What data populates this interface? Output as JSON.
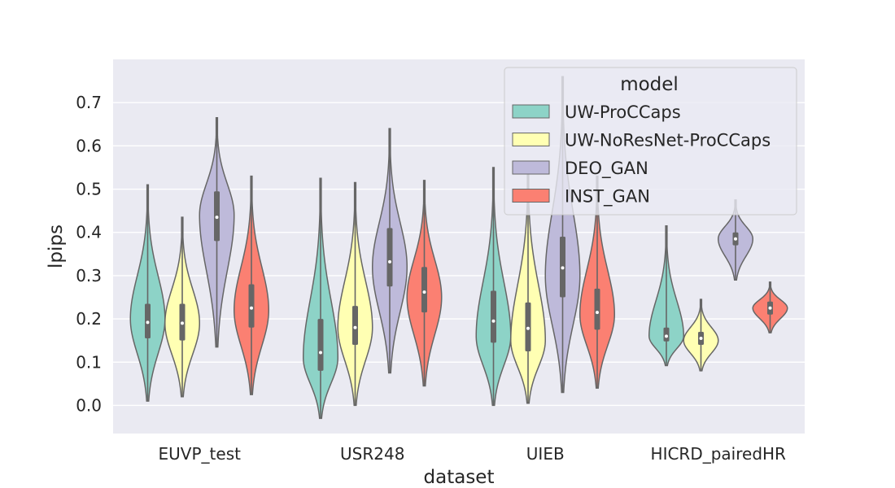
{
  "chart_data": {
    "type": "violin",
    "xlabel": "dataset",
    "ylabel": "lpips",
    "categories": [
      "EUVP_test",
      "USR248",
      "UIEB",
      "HICRD_pairedHR"
    ],
    "ylim": [
      -0.065,
      0.8
    ],
    "yticks": [
      "0.0",
      "0.1",
      "0.2",
      "0.3",
      "0.4",
      "0.5",
      "0.6",
      "0.7"
    ],
    "grid": true,
    "legend": {
      "title": "model",
      "placement": "top-right"
    },
    "series": [
      {
        "name": "UW-ProCCaps",
        "color": "#8dd3c7",
        "stats": [
          {
            "min": 0.01,
            "q1": 0.155,
            "median": 0.192,
            "q3": 0.235,
            "max": 0.51,
            "mode": 0.2
          },
          {
            "min": -0.03,
            "q1": 0.08,
            "median": 0.122,
            "q3": 0.2,
            "max": 0.525,
            "mode": 0.11
          },
          {
            "min": 0.0,
            "q1": 0.145,
            "median": 0.195,
            "q3": 0.265,
            "max": 0.55,
            "mode": 0.16
          },
          {
            "min": 0.092,
            "q1": 0.148,
            "median": 0.16,
            "q3": 0.18,
            "max": 0.415,
            "mode": 0.16
          }
        ]
      },
      {
        "name": "UW-NoResNet-ProCCaps",
        "color": "#ffffb3",
        "stats": [
          {
            "min": 0.02,
            "q1": 0.15,
            "median": 0.19,
            "q3": 0.235,
            "max": 0.435,
            "mode": 0.19
          },
          {
            "min": 0.0,
            "q1": 0.14,
            "median": 0.18,
            "q3": 0.23,
            "max": 0.515,
            "mode": 0.18
          },
          {
            "min": 0.005,
            "q1": 0.125,
            "median": 0.178,
            "q3": 0.238,
            "max": 0.55,
            "mode": 0.15
          },
          {
            "min": 0.08,
            "q1": 0.14,
            "median": 0.155,
            "q3": 0.17,
            "max": 0.245,
            "mode": 0.15
          }
        ]
      },
      {
        "name": "DEO_GAN",
        "color": "#bebada",
        "stats": [
          {
            "min": 0.135,
            "q1": 0.38,
            "median": 0.435,
            "q3": 0.495,
            "max": 0.665,
            "mode": 0.44
          },
          {
            "min": 0.075,
            "q1": 0.275,
            "median": 0.332,
            "q3": 0.41,
            "max": 0.64,
            "mode": 0.32
          },
          {
            "min": 0.03,
            "q1": 0.25,
            "median": 0.318,
            "q3": 0.39,
            "max": 0.76,
            "mode": 0.3
          },
          {
            "min": 0.29,
            "q1": 0.37,
            "median": 0.385,
            "q3": 0.4,
            "max": 0.475,
            "mode": 0.385
          }
        ]
      },
      {
        "name": "INST_GAN",
        "color": "#fb8072",
        "stats": [
          {
            "min": 0.025,
            "q1": 0.18,
            "median": 0.225,
            "q3": 0.28,
            "max": 0.53,
            "mode": 0.22
          },
          {
            "min": 0.045,
            "q1": 0.215,
            "median": 0.262,
            "q3": 0.32,
            "max": 0.52,
            "mode": 0.25
          },
          {
            "min": 0.04,
            "q1": 0.175,
            "median": 0.215,
            "q3": 0.27,
            "max": 0.53,
            "mode": 0.21
          },
          {
            "min": 0.168,
            "q1": 0.21,
            "median": 0.225,
            "q3": 0.24,
            "max": 0.285,
            "mode": 0.225
          }
        ]
      }
    ]
  }
}
